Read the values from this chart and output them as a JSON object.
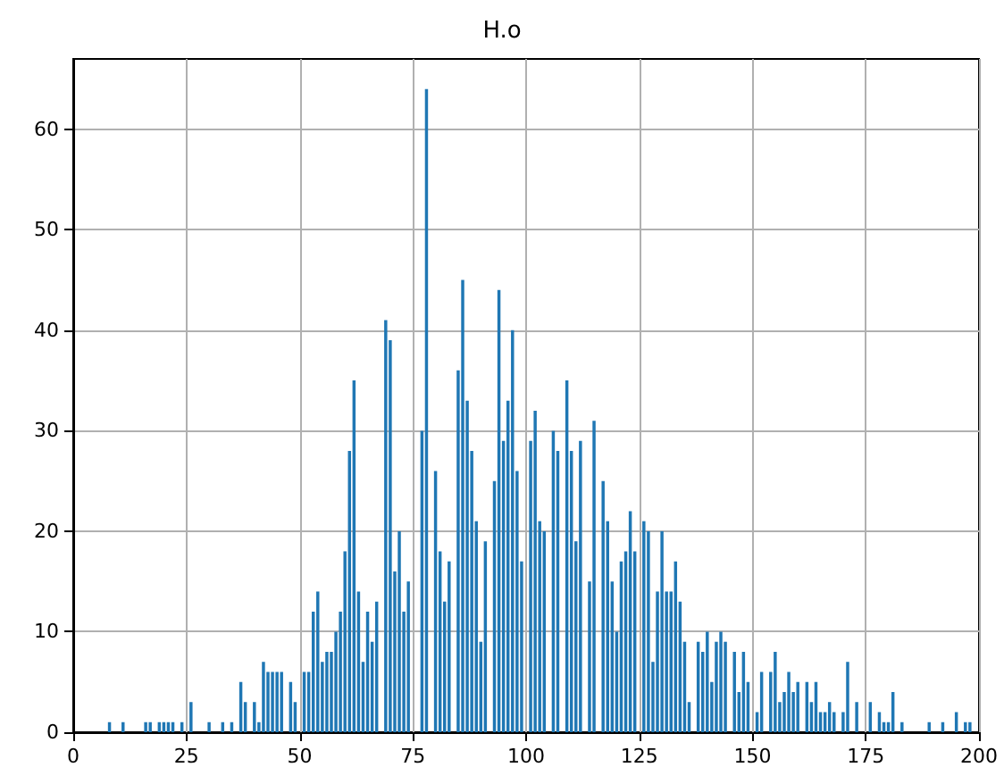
{
  "chart_data": {
    "type": "histogram",
    "title": "H.o",
    "bins": [
      7.5,
      8.5,
      9.5,
      10.5,
      11.5,
      12.5,
      13.5,
      14.5,
      15.5,
      16.5,
      17.5,
      18.5,
      19.5,
      20.5,
      21.5,
      22.5,
      23.5,
      24.5,
      25.5,
      26.5,
      27.5,
      28.5,
      29.5,
      30.5,
      31.5,
      32.5,
      33.5,
      34.5,
      35.5,
      36.5,
      37.5,
      38.5,
      39.5,
      40.5,
      41.5,
      42.5,
      43.5,
      44.5,
      45.5,
      46.5,
      47.5,
      48.5,
      49.5,
      50.5,
      51.5,
      52.5,
      53.5,
      54.5,
      55.5,
      56.5,
      57.5,
      58.5,
      59.5,
      60.5,
      61.5,
      62.5,
      63.5,
      64.5,
      65.5,
      66.5,
      67.5,
      68.5,
      69.5,
      70.5,
      71.5,
      72.5,
      73.5,
      74.5,
      75.5,
      76.5,
      77.5,
      78.5,
      79.5,
      80.5,
      81.5,
      82.5,
      83.5,
      84.5,
      85.5,
      86.5,
      87.5,
      88.5,
      89.5,
      90.5,
      91.5,
      92.5,
      93.5,
      94.5,
      95.5,
      96.5,
      97.5,
      98.5,
      99.5,
      100.5,
      101.5,
      102.5,
      103.5,
      104.5,
      105.5,
      106.5,
      107.5,
      108.5,
      109.5,
      110.5,
      111.5,
      112.5,
      113.5,
      114.5,
      115.5,
      116.5,
      117.5,
      118.5,
      119.5,
      120.5,
      121.5,
      122.5,
      123.5,
      124.5,
      125.5,
      126.5,
      127.5,
      128.5,
      129.5,
      130.5,
      131.5,
      132.5,
      133.5,
      134.5,
      135.5,
      136.5,
      137.5,
      138.5,
      139.5,
      140.5,
      141.5,
      142.5,
      143.5,
      144.5,
      145.5,
      146.5,
      147.5,
      148.5,
      149.5,
      150.5,
      151.5,
      152.5,
      153.5,
      154.5,
      155.5,
      156.5,
      157.5,
      158.5,
      159.5,
      160.5,
      161.5,
      162.5,
      163.5,
      164.5,
      165.5,
      166.5,
      167.5,
      168.5,
      169.5,
      170.5,
      171.5,
      172.5,
      173.5,
      174.5,
      175.5,
      176.5,
      177.5,
      178.5,
      179.5,
      180.5,
      181.5,
      182.5,
      183.5,
      184.5,
      185.5,
      186.5,
      187.5,
      188.5,
      189.5,
      190.5,
      191.5,
      192.5,
      193.5,
      194.5,
      195.5,
      196.5,
      197.5,
      198.5
    ],
    "values": [
      1,
      0,
      0,
      1,
      0,
      0,
      0,
      0,
      1,
      1,
      0,
      1,
      1,
      1,
      1,
      0,
      1,
      0,
      3,
      0,
      0,
      0,
      1,
      0,
      0,
      1,
      0,
      1,
      0,
      5,
      3,
      0,
      3,
      1,
      7,
      6,
      6,
      6,
      6,
      0,
      5,
      3,
      0,
      6,
      6,
      12,
      14,
      7,
      8,
      8,
      10,
      12,
      18,
      28,
      35,
      14,
      7,
      12,
      9,
      13,
      0,
      41,
      39,
      16,
      20,
      12,
      15,
      0,
      0,
      30,
      64,
      0,
      26,
      18,
      13,
      17,
      0,
      36,
      45,
      33,
      28,
      21,
      9,
      19,
      0,
      25,
      44,
      29,
      33,
      40,
      26,
      17,
      0,
      29,
      32,
      21,
      20,
      0,
      30,
      28,
      0,
      35,
      28,
      19,
      29,
      0,
      15,
      31,
      0,
      25,
      21,
      15,
      10,
      17,
      18,
      22,
      18,
      0,
      21,
      20,
      7,
      14,
      20,
      14,
      14,
      17,
      13,
      9,
      3,
      0,
      9,
      8,
      10,
      5,
      9,
      10,
      9,
      0,
      8,
      4,
      8,
      5,
      0,
      2,
      6,
      0,
      6,
      8,
      3,
      4,
      6,
      4,
      5,
      0,
      5,
      3,
      5,
      2,
      2,
      3,
      2,
      0,
      2,
      7,
      0,
      3,
      0,
      0,
      3,
      0,
      2,
      1,
      1,
      4,
      0,
      1,
      0,
      0,
      0,
      0,
      0,
      1,
      0,
      0,
      1,
      0,
      0,
      2,
      0,
      1,
      1
    ],
    "color": "#1f77b4",
    "xlim": [
      0,
      200
    ],
    "xticks": [
      0,
      25,
      50,
      75,
      100,
      125,
      150,
      175,
      200
    ],
    "ylim": [
      0,
      67
    ],
    "yticks": [
      0,
      10,
      20,
      30,
      40,
      50,
      60
    ],
    "grid": true
  }
}
